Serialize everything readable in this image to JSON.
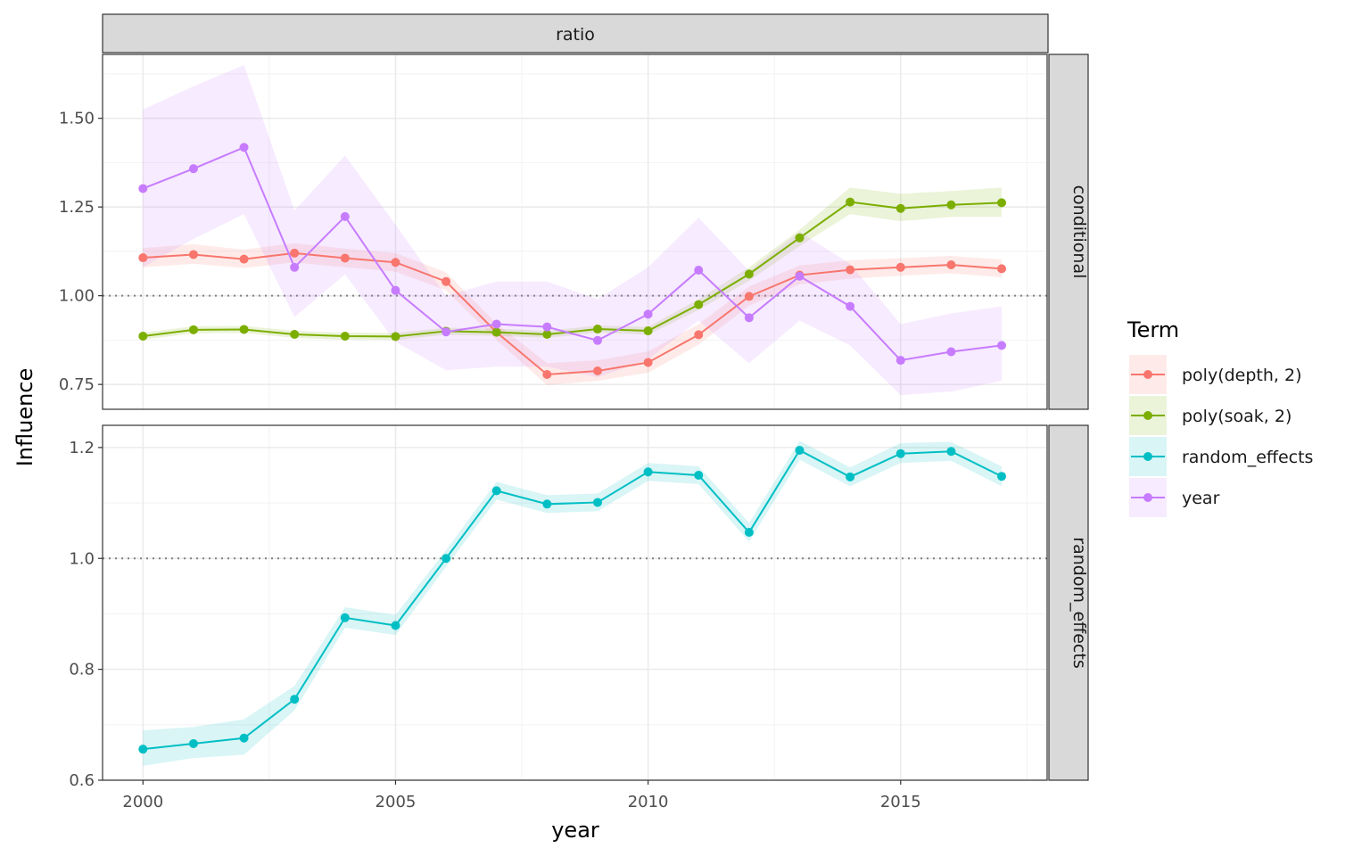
{
  "chart_data": {
    "type": "line",
    "column_strip": "ratio",
    "xlabel": "year",
    "ylabel": "Influence",
    "xlim": [
      1999.2,
      2017.9
    ],
    "x_ticks": [
      2000,
      2005,
      2010,
      2015
    ],
    "x_tick_labels": [
      "2000",
      "2005",
      "2010",
      "2015"
    ],
    "reference_line": 1.0,
    "grid": true,
    "legend": {
      "title": "Term",
      "position": "right",
      "entries": [
        "poly(depth, 2)",
        "poly(soak, 2)",
        "random_effects",
        "year"
      ]
    },
    "colors": {
      "poly(depth, 2)": "#F8766D",
      "poly(soak, 2)": "#7CAE00",
      "random_effects": "#00BFC4",
      "year": "#C77CFF"
    },
    "panels": [
      {
        "strip": "conditional",
        "ylim": [
          0.68,
          1.68
        ],
        "y_ticks": [
          0.75,
          1.0,
          1.25,
          1.5
        ],
        "y_tick_labels": [
          "0.75",
          "1.00",
          "1.25",
          "1.50"
        ],
        "series": [
          {
            "name": "poly(depth, 2)",
            "x": [
              2000,
              2001,
              2002,
              2003,
              2004,
              2005,
              2006,
              2007,
              2008,
              2009,
              2010,
              2011,
              2012,
              2013,
              2014,
              2015,
              2016,
              2017
            ],
            "y": [
              1.107,
              1.116,
              1.103,
              1.12,
              1.106,
              1.094,
              1.04,
              0.897,
              0.778,
              0.788,
              0.812,
              0.89,
              0.998,
              1.058,
              1.073,
              1.08,
              1.087,
              1.076
            ],
            "lower": [
              1.08,
              1.09,
              1.078,
              1.094,
              1.08,
              1.068,
              1.015,
              0.875,
              0.748,
              0.76,
              0.783,
              0.862,
              0.972,
              1.032,
              1.048,
              1.056,
              1.063,
              1.052
            ],
            "upper": [
              1.134,
              1.145,
              1.13,
              1.148,
              1.133,
              1.12,
              1.066,
              0.921,
              0.81,
              0.818,
              0.843,
              0.92,
              1.026,
              1.085,
              1.1,
              1.106,
              1.112,
              1.102
            ]
          },
          {
            "name": "poly(soak, 2)",
            "x": [
              2000,
              2001,
              2002,
              2003,
              2004,
              2005,
              2006,
              2007,
              2008,
              2009,
              2010,
              2011,
              2012,
              2013,
              2014,
              2015,
              2016,
              2017
            ],
            "y": [
              0.886,
              0.904,
              0.905,
              0.891,
              0.886,
              0.885,
              0.9,
              0.897,
              0.891,
              0.906,
              0.901,
              0.975,
              1.061,
              1.163,
              1.264,
              1.246,
              1.256,
              1.262
            ],
            "lower": [
              0.876,
              0.894,
              0.895,
              0.881,
              0.876,
              0.875,
              0.89,
              0.887,
              0.881,
              0.896,
              0.89,
              0.96,
              1.042,
              1.14,
              1.23,
              1.21,
              1.222,
              1.222
            ],
            "upper": [
              0.896,
              0.914,
              0.915,
              0.901,
              0.896,
              0.895,
              0.91,
              0.907,
              0.901,
              0.916,
              0.912,
              0.99,
              1.08,
              1.186,
              1.305,
              1.287,
              1.295,
              1.305
            ]
          },
          {
            "name": "year",
            "x": [
              2000,
              2001,
              2002,
              2003,
              2004,
              2005,
              2006,
              2007,
              2008,
              2009,
              2010,
              2011,
              2012,
              2013,
              2014,
              2015,
              2016,
              2017
            ],
            "y": [
              1.302,
              1.358,
              1.418,
              1.08,
              1.223,
              1.015,
              0.898,
              0.92,
              0.912,
              0.874,
              0.948,
              1.072,
              0.938,
              1.055,
              0.97,
              0.818,
              0.842,
              0.86
            ],
            "lower": [
              1.08,
              1.16,
              1.23,
              0.94,
              1.06,
              0.87,
              0.79,
              0.8,
              0.8,
              0.77,
              0.82,
              0.93,
              0.81,
              0.93,
              0.86,
              0.72,
              0.73,
              0.76
            ],
            "upper": [
              1.525,
              1.59,
              1.65,
              1.24,
              1.395,
              1.2,
              1.0,
              1.04,
              1.04,
              0.99,
              1.08,
              1.22,
              1.07,
              1.18,
              1.09,
              0.92,
              0.95,
              0.97
            ]
          }
        ]
      },
      {
        "strip": "random_effects",
        "ylim": [
          0.6,
          1.24
        ],
        "y_ticks": [
          0.6,
          0.8,
          1.0,
          1.2
        ],
        "y_tick_labels": [
          "0.6",
          "0.8",
          "1.0",
          "1.2"
        ],
        "series": [
          {
            "name": "random_effects",
            "x": [
              2000,
              2001,
              2002,
              2003,
              2004,
              2005,
              2006,
              2007,
              2008,
              2009,
              2010,
              2011,
              2012,
              2013,
              2014,
              2015,
              2016,
              2017
            ],
            "y": [
              0.656,
              0.666,
              0.676,
              0.746,
              0.893,
              0.879,
              1.0,
              1.122,
              1.098,
              1.101,
              1.156,
              1.15,
              1.047,
              1.195,
              1.147,
              1.189,
              1.193,
              1.148
            ],
            "lower": [
              0.626,
              0.64,
              0.646,
              0.726,
              0.875,
              0.862,
              0.985,
              1.106,
              1.082,
              1.085,
              1.14,
              1.134,
              1.03,
              1.178,
              1.13,
              1.172,
              1.176,
              1.13
            ],
            "upper": [
              0.69,
              0.696,
              0.71,
              0.77,
              0.912,
              0.898,
              1.015,
              1.138,
              1.114,
              1.117,
              1.172,
              1.166,
              1.064,
              1.212,
              1.164,
              1.208,
              1.21,
              1.166
            ]
          }
        ]
      }
    ]
  }
}
